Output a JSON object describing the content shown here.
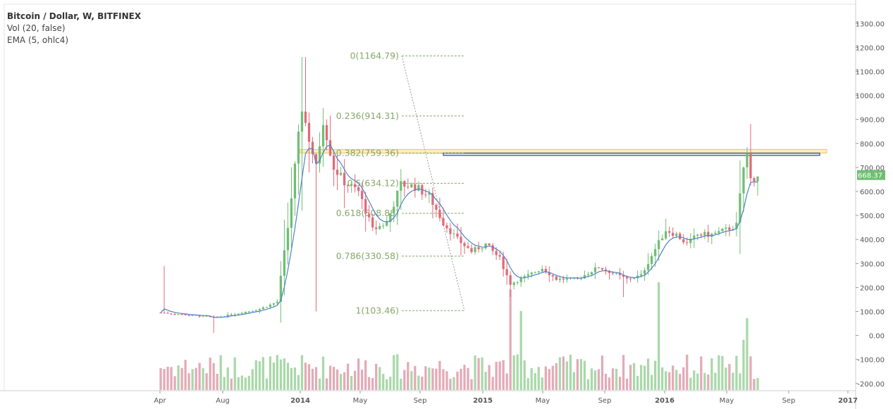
{
  "legend": {
    "title": "Bitcoin / Dollar, W, BITFINEX",
    "volume_indicator": "Vol (20, false)",
    "ema_indicator": "EMA (5, ohlc4)"
  },
  "colors": {
    "up": "#6fbe73",
    "down": "#e06a78",
    "up_volume": "#a9d8a9",
    "down_volume": "#e3aab6",
    "ema": "#4f83c4",
    "fib": "#86a86a",
    "price_badge": "#6fbe73",
    "highlight_zone": "#f7e08e",
    "blue_zone": "#bdd3f5"
  },
  "chart_data": {
    "type": "candlestick",
    "symbol": "Bitcoin / Dollar",
    "interval": "W",
    "exchange": "BITFINEX",
    "y_axis": {
      "min": -230,
      "max": 1380,
      "ticks": [
        "1300.00",
        "1200.00",
        "1100.00",
        "1000.00",
        "900.00",
        "800.00",
        "700.00",
        "600.00",
        "500.00",
        "400.00",
        "300.00",
        "200.00",
        "100.00",
        "0.00",
        "-100.00",
        "-200.00"
      ]
    },
    "x_axis": {
      "labels": [
        "Apr",
        "Aug",
        "2014",
        "May",
        "Sep",
        "2015",
        "May",
        "Sep",
        "2016",
        "May",
        "Sep",
        "2017"
      ]
    },
    "last_price": "668.37",
    "fibonacci": {
      "levels": [
        {
          "label": "0(1164.79)",
          "price": 1164.79
        },
        {
          "label": "0.236(914.31)",
          "price": 914.31
        },
        {
          "label": "0.382(759.36)",
          "price": 759.36
        },
        {
          "label": "0.5(634.12)",
          "price": 634.12
        },
        {
          "label": "0.618(508.88)",
          "price": 508.88
        },
        {
          "label": "0.786(330.58)",
          "price": 330.58
        },
        {
          "label": "1(103.46)",
          "price": 103.46
        }
      ]
    },
    "zones": [
      {
        "name": "resistance-zone-yellow",
        "from_price": 775,
        "to_price": 760
      },
      {
        "name": "resistance-zone-blue",
        "from_price": 760,
        "to_price": 750
      }
    ],
    "anchors": [
      {
        "time": 0,
        "price": 95
      },
      {
        "time": 16,
        "price": 75
      },
      {
        "time": 28,
        "price": 110
      },
      {
        "time": 33,
        "price": 140
      },
      {
        "time": 36,
        "price": 450
      },
      {
        "time": 38,
        "price": 700
      },
      {
        "time": 40,
        "price": 950
      },
      {
        "time": 42,
        "price": 820
      },
      {
        "time": 44,
        "price": 700
      },
      {
        "time": 46,
        "price": 900
      },
      {
        "time": 49,
        "price": 700
      },
      {
        "time": 52,
        "price": 640
      },
      {
        "time": 56,
        "price": 600
      },
      {
        "time": 60,
        "price": 440
      },
      {
        "time": 64,
        "price": 470
      },
      {
        "time": 68,
        "price": 630
      },
      {
        "time": 72,
        "price": 620
      },
      {
        "time": 76,
        "price": 580
      },
      {
        "time": 80,
        "price": 470
      },
      {
        "time": 84,
        "price": 400
      },
      {
        "time": 88,
        "price": 350
      },
      {
        "time": 92,
        "price": 380
      },
      {
        "time": 96,
        "price": 320
      },
      {
        "time": 99,
        "price": 215
      },
      {
        "time": 104,
        "price": 250
      },
      {
        "time": 108,
        "price": 280
      },
      {
        "time": 112,
        "price": 235
      },
      {
        "time": 118,
        "price": 235
      },
      {
        "time": 124,
        "price": 285
      },
      {
        "time": 128,
        "price": 260
      },
      {
        "time": 132,
        "price": 235
      },
      {
        "time": 136,
        "price": 250
      },
      {
        "time": 140,
        "price": 360
      },
      {
        "time": 143,
        "price": 440
      },
      {
        "time": 146,
        "price": 420
      },
      {
        "time": 149,
        "price": 380
      },
      {
        "time": 152,
        "price": 420
      },
      {
        "time": 156,
        "price": 420
      },
      {
        "time": 160,
        "price": 440
      },
      {
        "time": 163,
        "price": 460
      },
      {
        "time": 165,
        "price": 700
      },
      {
        "time": 166,
        "price": 750
      },
      {
        "time": 167,
        "price": 650
      },
      {
        "time": 169,
        "price": 668.37
      }
    ]
  }
}
